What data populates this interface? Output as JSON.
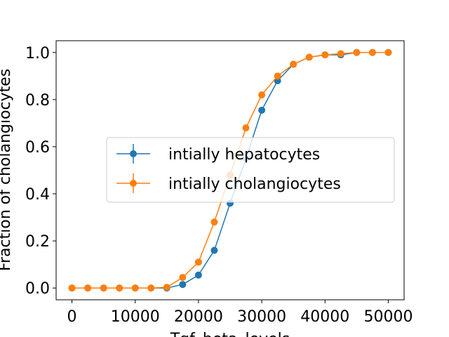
{
  "chart_data": {
    "type": "line",
    "xlabel": "Tgf_beta_levels",
    "ylabel": "Fraction of cholangiocytes",
    "xlim": [
      -2500,
      52500
    ],
    "ylim": [
      -0.05,
      1.05
    ],
    "xticks": [
      0,
      10000,
      20000,
      30000,
      40000,
      50000
    ],
    "xtick_labels": [
      "0",
      "10000",
      "20000",
      "30000",
      "40000",
      "50000"
    ],
    "yticks": [
      0.0,
      0.2,
      0.4,
      0.6,
      0.8,
      1.0
    ],
    "ytick_labels": [
      "0.0",
      "0.2",
      "0.4",
      "0.6",
      "0.8",
      "1.0"
    ],
    "grid": false,
    "legend_position": "center-right",
    "x": [
      0,
      2500,
      5000,
      7500,
      10000,
      12500,
      15000,
      17500,
      20000,
      22500,
      25000,
      27500,
      30000,
      32500,
      35000,
      37500,
      40000,
      42500,
      45000,
      47500,
      50000
    ],
    "series": [
      {
        "name": "intially hepatocytes",
        "color": "#1f77b4",
        "values": [
          0.0,
          0.0,
          0.0,
          0.0,
          0.0,
          0.0,
          0.0,
          0.015,
          0.055,
          0.16,
          0.36,
          0.55,
          0.755,
          0.88,
          0.95,
          0.98,
          0.99,
          0.99,
          1.0,
          1.0,
          1.0
        ]
      },
      {
        "name": "intially cholangiocytes",
        "color": "#ff7f0e",
        "values": [
          0.0,
          0.0,
          0.0,
          0.0,
          0.0,
          0.0,
          0.003,
          0.045,
          0.11,
          0.28,
          0.48,
          0.68,
          0.82,
          0.9,
          0.95,
          0.98,
          0.99,
          0.995,
          1.0,
          1.0,
          1.0
        ]
      }
    ]
  }
}
